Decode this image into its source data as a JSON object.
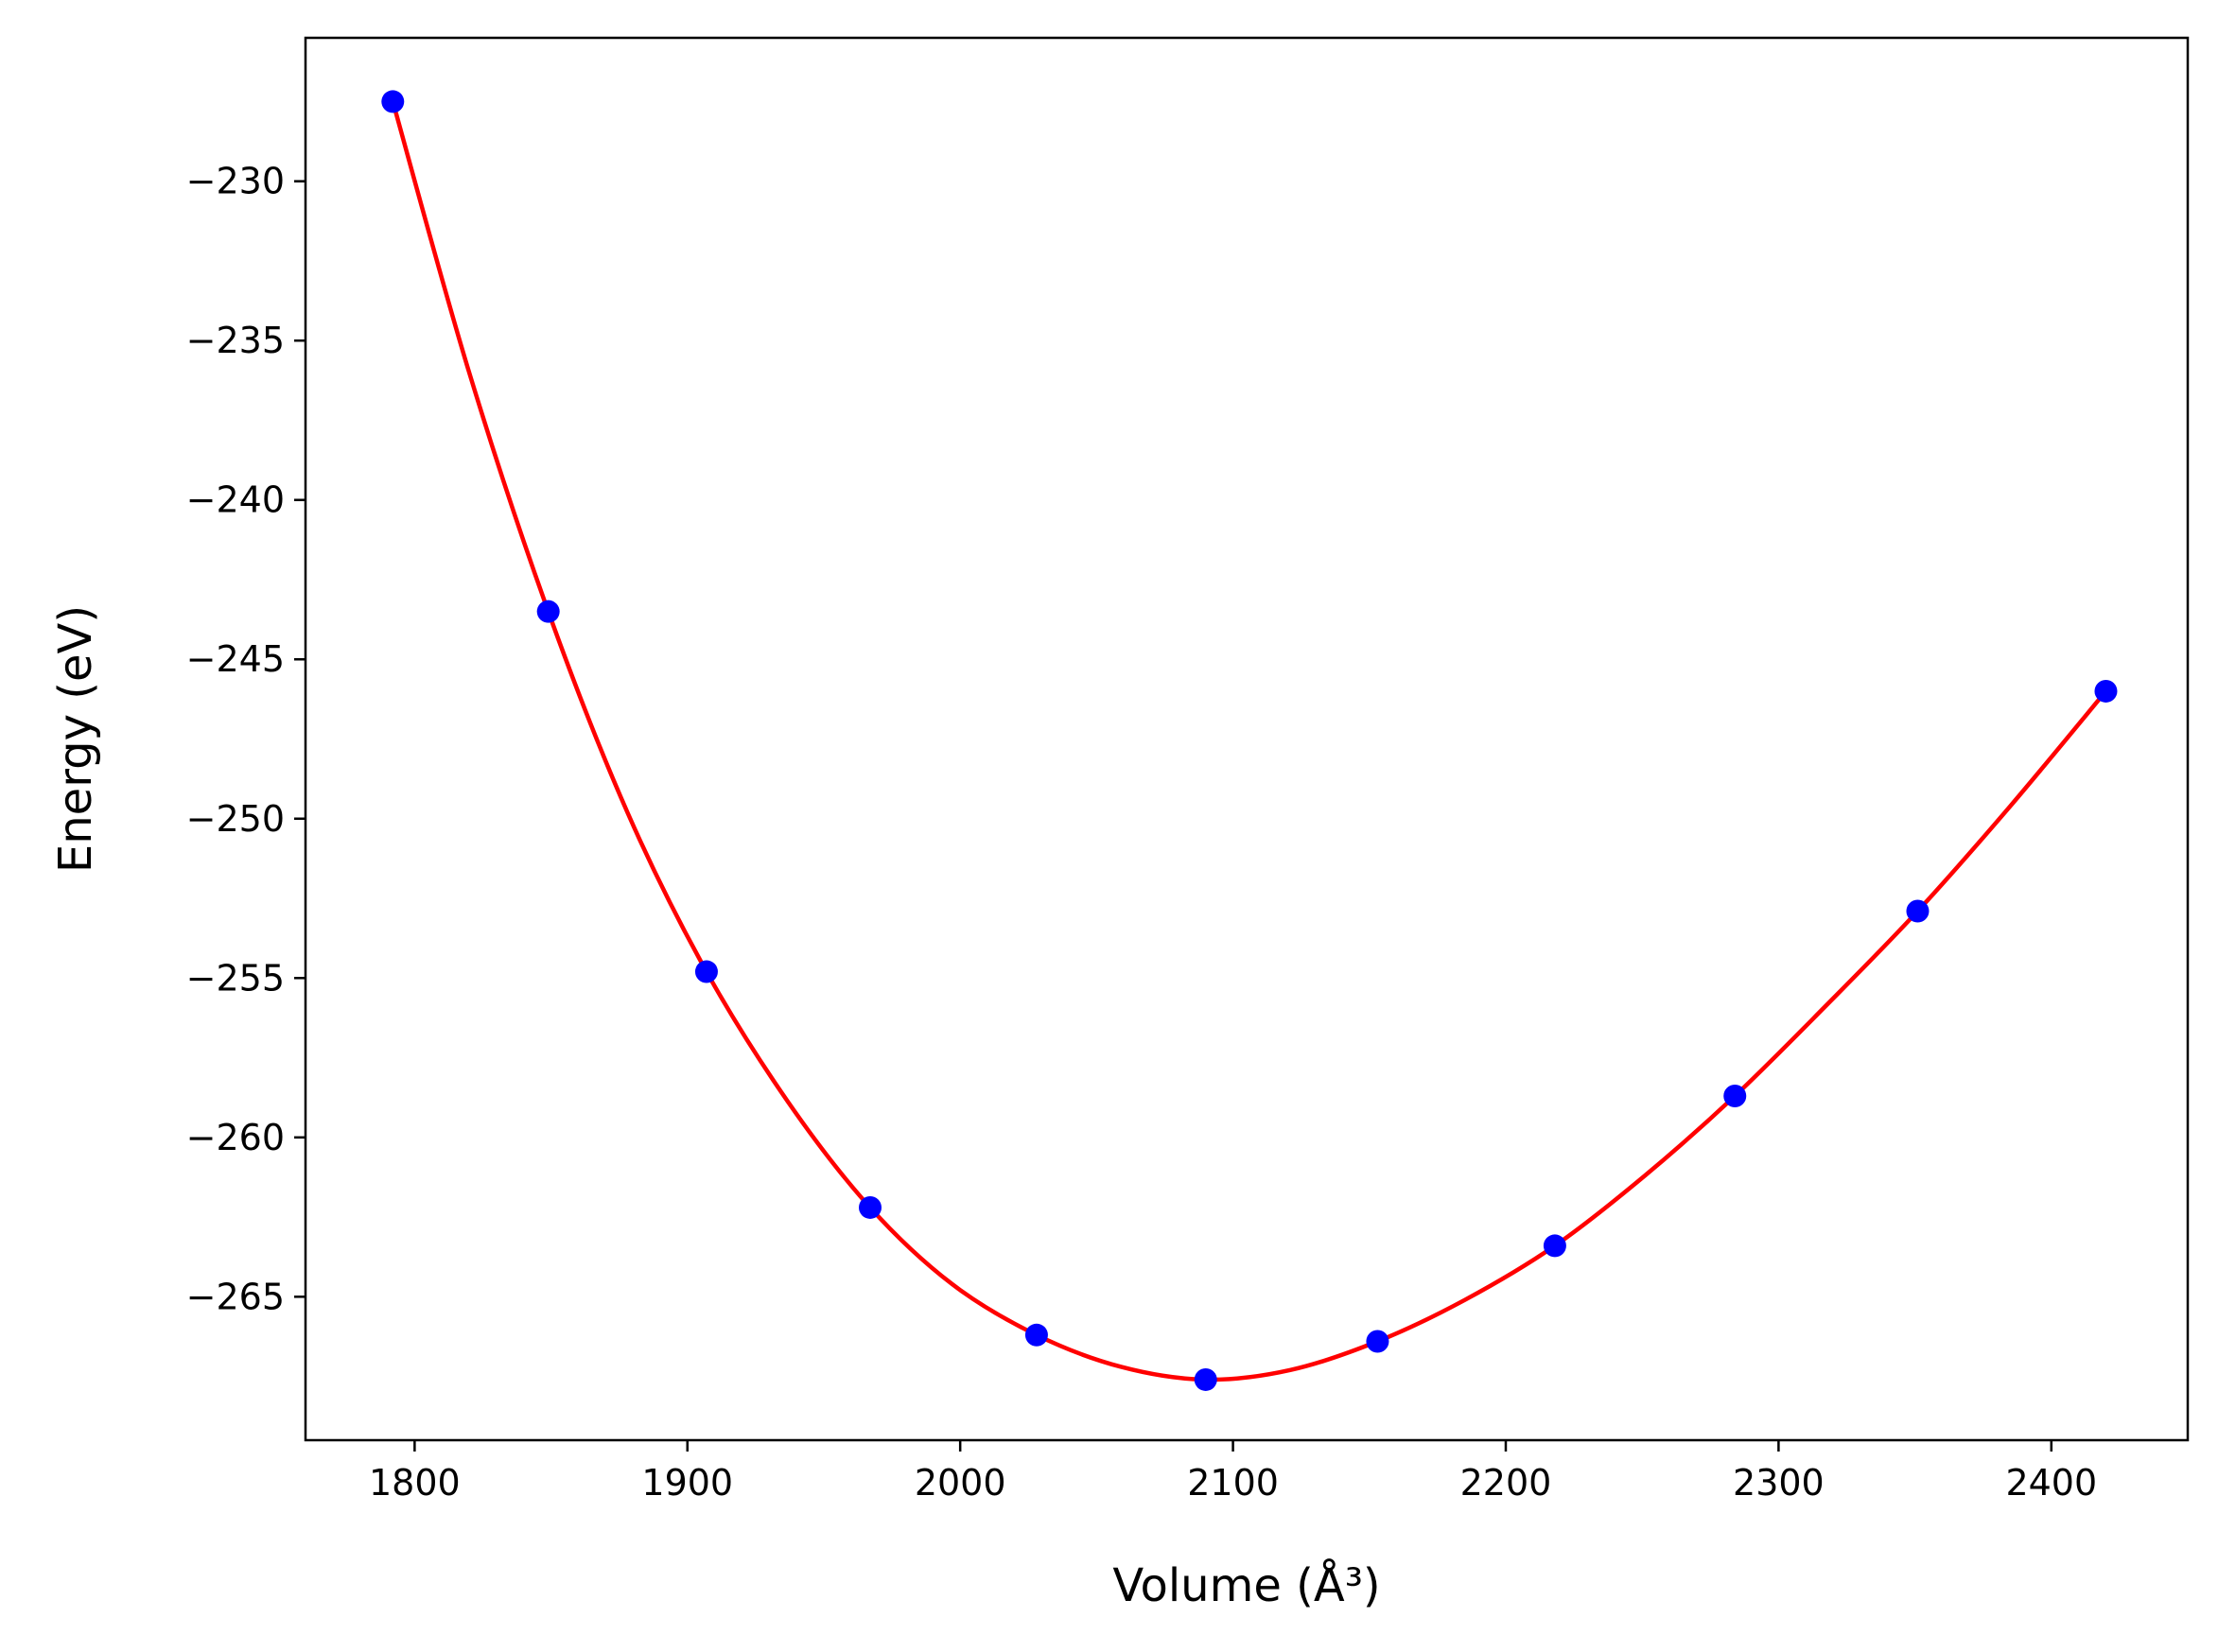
{
  "chart_data": {
    "type": "scatter",
    "xlabel": "Volume (Å³)",
    "ylabel": "Energy (eV)",
    "xlim": [
      1760,
      2450
    ],
    "ylim": [
      -269.5,
      -225.5
    ],
    "x_ticks": [
      1800,
      1900,
      2000,
      2100,
      2200,
      2300,
      2400
    ],
    "y_ticks": [
      -230,
      -235,
      -240,
      -245,
      -250,
      -255,
      -260,
      -265
    ],
    "x_tick_labels": [
      "1800",
      "1900",
      "2000",
      "2100",
      "2200",
      "2300",
      "2400"
    ],
    "y_tick_labels": [
      "−230",
      "−235",
      "−240",
      "−245",
      "−250",
      "−255",
      "−260",
      "−265"
    ],
    "grid": false,
    "series": [
      {
        "kind": "points",
        "color": "#0000ff",
        "x": [
          1792,
          1849,
          1907,
          1967,
          2028,
          2090,
          2153,
          2218,
          2284,
          2351,
          2420
        ],
        "y": [
          -227.5,
          -243.5,
          -254.8,
          -262.2,
          -266.2,
          -267.6,
          -266.4,
          -263.4,
          -258.7,
          -252.9,
          -246.0
        ]
      },
      {
        "kind": "fit-line",
        "color": "#ff0000",
        "x": [
          1792,
          1820,
          1849,
          1878,
          1907,
          1937,
          1967,
          1997,
          2028,
          2059,
          2090,
          2121,
          2153,
          2185,
          2218,
          2251,
          2284,
          2317,
          2351,
          2385,
          2420
        ],
        "y": [
          -227.5,
          -236.0,
          -243.5,
          -249.8,
          -254.8,
          -258.9,
          -262.2,
          -264.6,
          -266.2,
          -267.2,
          -267.6,
          -267.3,
          -266.4,
          -265.1,
          -263.4,
          -261.2,
          -258.7,
          -255.9,
          -252.9,
          -249.6,
          -246.0
        ]
      }
    ]
  }
}
